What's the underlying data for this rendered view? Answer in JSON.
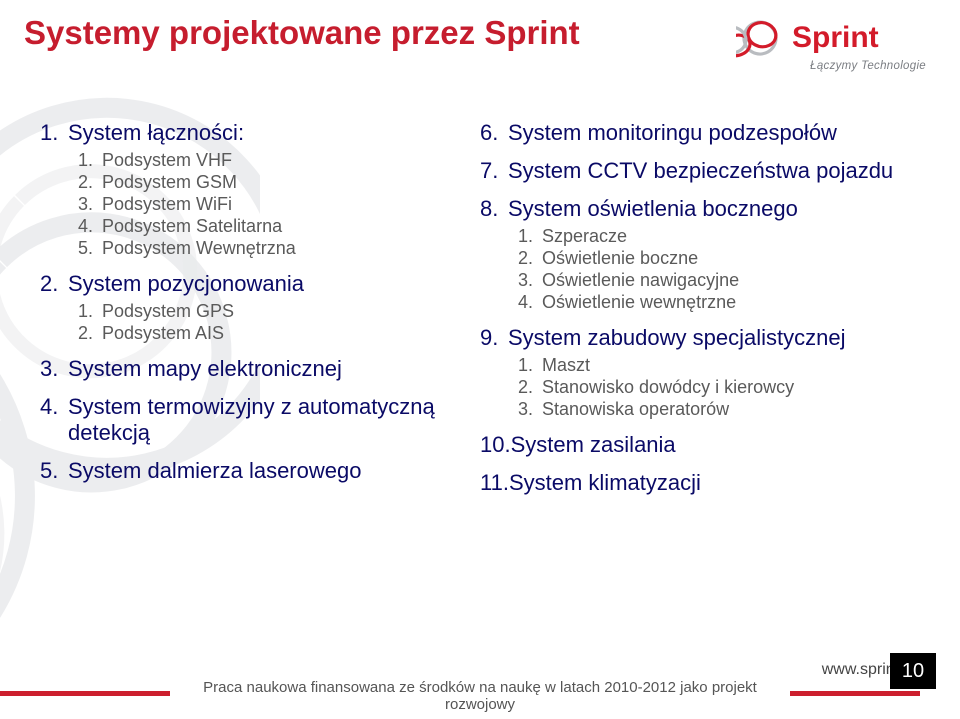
{
  "colors": {
    "title": "#c61d2e",
    "body_l1": "#0a0a66",
    "body_l2": "#5a5a5a",
    "brand_red": "#d31b2a",
    "brand_grey": "#9fa2a7",
    "bg_swirl": "#c7c9cc"
  },
  "title": "Systemy projektowane przez Sprint",
  "logo": {
    "name": "Sprint",
    "tagline": "Łączymy Technologie"
  },
  "left": [
    {
      "n": "1.",
      "t": "System łączności:",
      "sub": [
        {
          "n": "1.",
          "t": "Podsystem VHF"
        },
        {
          "n": "2.",
          "t": "Podsystem GSM"
        },
        {
          "n": "3.",
          "t": "Podsystem WiFi"
        },
        {
          "n": "4.",
          "t": "Podsystem Satelitarna"
        },
        {
          "n": "5.",
          "t": "Podsystem Wewnętrzna"
        }
      ]
    },
    {
      "n": "2.",
      "t": "System pozycjonowania",
      "sub": [
        {
          "n": "1.",
          "t": "Podsystem GPS"
        },
        {
          "n": "2.",
          "t": "Podsystem AIS"
        }
      ]
    },
    {
      "n": "3.",
      "t": "System mapy elektronicznej"
    },
    {
      "n": "4.",
      "t": "System termowizyjny z automatyczną detekcją"
    },
    {
      "n": "5.",
      "t": "System dalmierza laserowego"
    }
  ],
  "right": [
    {
      "n": "6.",
      "t": "System monitoringu podzespołów"
    },
    {
      "n": "7.",
      "t": "System CCTV bezpieczeństwa pojazdu"
    },
    {
      "n": "8.",
      "t": "System oświetlenia bocznego",
      "sub": [
        {
          "n": "1.",
          "t": "Szperacze"
        },
        {
          "n": "2.",
          "t": "Oświetlenie boczne"
        },
        {
          "n": "3.",
          "t": "Oświetlenie nawigacyjne"
        },
        {
          "n": "4.",
          "t": "Oświetlenie wewnętrzne"
        }
      ]
    },
    {
      "n": "9.",
      "t": "System zabudowy specjalistycznej",
      "sub": [
        {
          "n": "1.",
          "t": "Maszt"
        },
        {
          "n": "2.",
          "t": "Stanowisko dowódcy i kierowcy"
        },
        {
          "n": "3.",
          "t": "Stanowiska operatorów"
        }
      ]
    },
    {
      "n": "10.",
      "t": "System zasilania"
    },
    {
      "n": "11.",
      "t": "System klimatyzacji"
    }
  ],
  "footer": {
    "url": "www.sprint.pl",
    "note": "Praca naukowa finansowana ze środków na naukę w latach 2010-2012 jako projekt rozwojowy"
  },
  "page": "10"
}
